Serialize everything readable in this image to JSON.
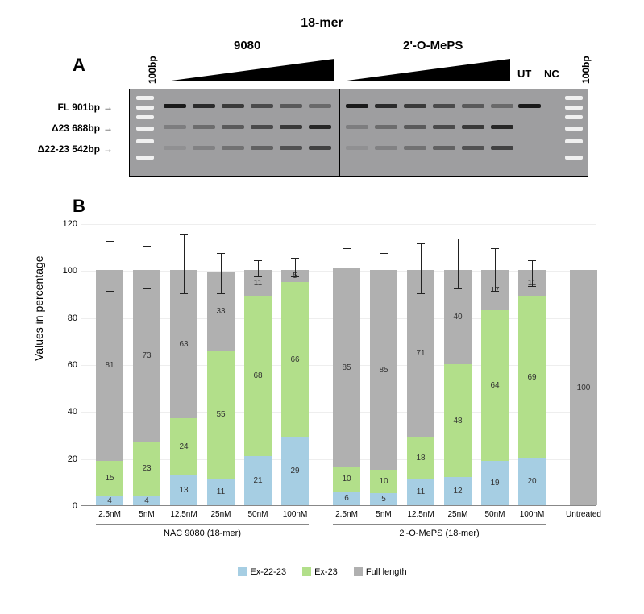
{
  "figure_title": "18-mer",
  "colors": {
    "ex2223": "#a6cee3",
    "ex23": "#b2df8a",
    "full": "#b0b0b0",
    "gel_bg": "#9e9ea0",
    "band_dark": "#1a1a1a",
    "axis": "#888888",
    "error": "#222222"
  },
  "panel_a": {
    "label": "A",
    "groups": [
      "9080",
      "2'-O-MePS"
    ],
    "lane_labels_right": [
      "UT",
      "NC"
    ],
    "ladder_label": "100bp",
    "row_labels": [
      "FL 901bp",
      "Δ23 688bp",
      "Δ22-23 542bp"
    ]
  },
  "panel_b": {
    "label": "B",
    "y_axis_title": "Values in percentage",
    "y_ticks": [
      0,
      20,
      40,
      60,
      80,
      100,
      120
    ],
    "y_max": 120,
    "legend": [
      {
        "label": "Ex-22-23",
        "color_key": "ex2223"
      },
      {
        "label": "Ex-23",
        "color_key": "ex23"
      },
      {
        "label": "Full length",
        "color_key": "full"
      }
    ],
    "groups": [
      {
        "name": "NAC 9080  (18-mer)",
        "concentrations": [
          "2.5nM",
          "5nM",
          "12.5nM",
          "25nM",
          "50nM",
          "100nM"
        ]
      },
      {
        "name": "2'-O-MePS (18-mer)",
        "concentrations": [
          "2.5nM",
          "5nM",
          "12.5nM",
          "25nM",
          "50nM",
          "100nM"
        ]
      }
    ],
    "untreated_label": "Untreated",
    "bars": [
      {
        "ex2223": 4,
        "ex23": 15,
        "full": 81,
        "err_low": 9,
        "err_hi": 12
      },
      {
        "ex2223": 4,
        "ex23": 23,
        "full": 73,
        "err_low": 8,
        "err_hi": 10
      },
      {
        "ex2223": 13,
        "ex23": 24,
        "full": 63,
        "err_low": 10,
        "err_hi": 15
      },
      {
        "ex2223": 11,
        "ex23": 55,
        "full": 33,
        "err_low": 9,
        "err_hi": 8
      },
      {
        "ex2223": 21,
        "ex23": 68,
        "full": 11,
        "err_low": 3,
        "err_hi": 4
      },
      {
        "ex2223": 29,
        "ex23": 66,
        "full": 5,
        "err_low": 3,
        "err_hi": 5
      },
      {
        "ex2223": 6,
        "ex23": 10,
        "full": 85,
        "err_low": 7,
        "err_hi": 8
      },
      {
        "ex2223": 5,
        "ex23": 10,
        "full": 85,
        "err_low": 6,
        "err_hi": 7
      },
      {
        "ex2223": 11,
        "ex23": 18,
        "full": 71,
        "err_low": 10,
        "err_hi": 11
      },
      {
        "ex2223": 12,
        "ex23": 48,
        "full": 40,
        "err_low": 8,
        "err_hi": 13
      },
      {
        "ex2223": 19,
        "ex23": 64,
        "full": 17,
        "err_low": 9,
        "err_hi": 9
      },
      {
        "ex2223": 20,
        "ex23": 69,
        "full": 11,
        "err_low": 7,
        "err_hi": 4
      },
      {
        "ex2223": 0,
        "ex23": 0,
        "full": 100,
        "err_low": 0,
        "err_hi": 0
      }
    ]
  },
  "font_sizes": {
    "panel_label": 22,
    "title": 16,
    "axis_label": 14,
    "tick": 11,
    "bar_value": 10
  }
}
